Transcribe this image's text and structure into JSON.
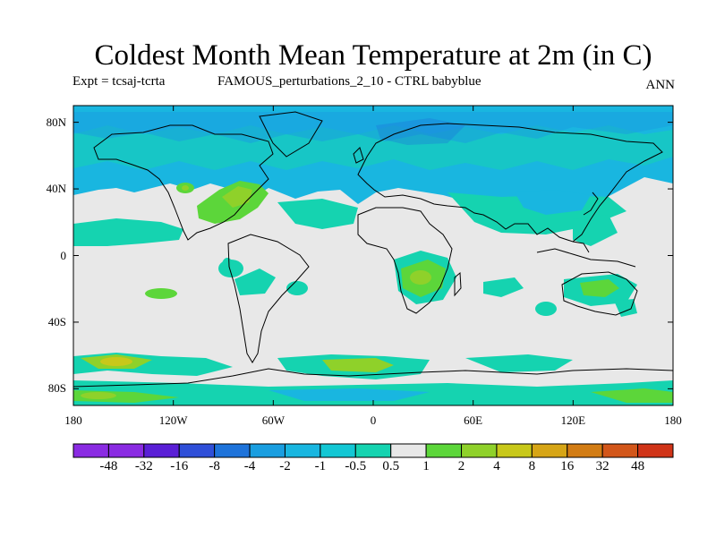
{
  "title": "Coldest Month Mean Temperature at 2m (in C)",
  "subtitle_left": "Expt = tcsaj-tcrta",
  "subtitle_mid": "FAMOUS_perturbations_2_10 - CTRL babyblue",
  "subtitle_right": "ANN",
  "map": {
    "projection": "cylindrical-equidistant",
    "lat_range": [
      -90,
      90
    ],
    "lon_range": [
      -180,
      180
    ],
    "lat_ticks": [
      "80N",
      "40N",
      "0",
      "40S",
      "80S"
    ],
    "lon_ticks": [
      "180",
      "120W",
      "60W",
      "0",
      "60E",
      "120E",
      "180"
    ],
    "background_color": "#e8e8e8"
  },
  "colorbar": {
    "labels": [
      "-48",
      "-32",
      "-16",
      "-8",
      "-4",
      "-2",
      "-1",
      "-0.5",
      "0.5",
      "1",
      "2",
      "4",
      "8",
      "16",
      "32",
      "48"
    ],
    "colors": [
      "#8a2be2",
      "#5a1fd6",
      "#2f4fd8",
      "#1e73da",
      "#1a9ee0",
      "#19b6e0",
      "#13c7d4",
      "#15d3b0",
      "#e8e8e8",
      "#5cd63a",
      "#8fd12a",
      "#c8c81a",
      "#d6a516",
      "#d27c14",
      "#d2561a",
      "#d03418"
    ]
  }
}
